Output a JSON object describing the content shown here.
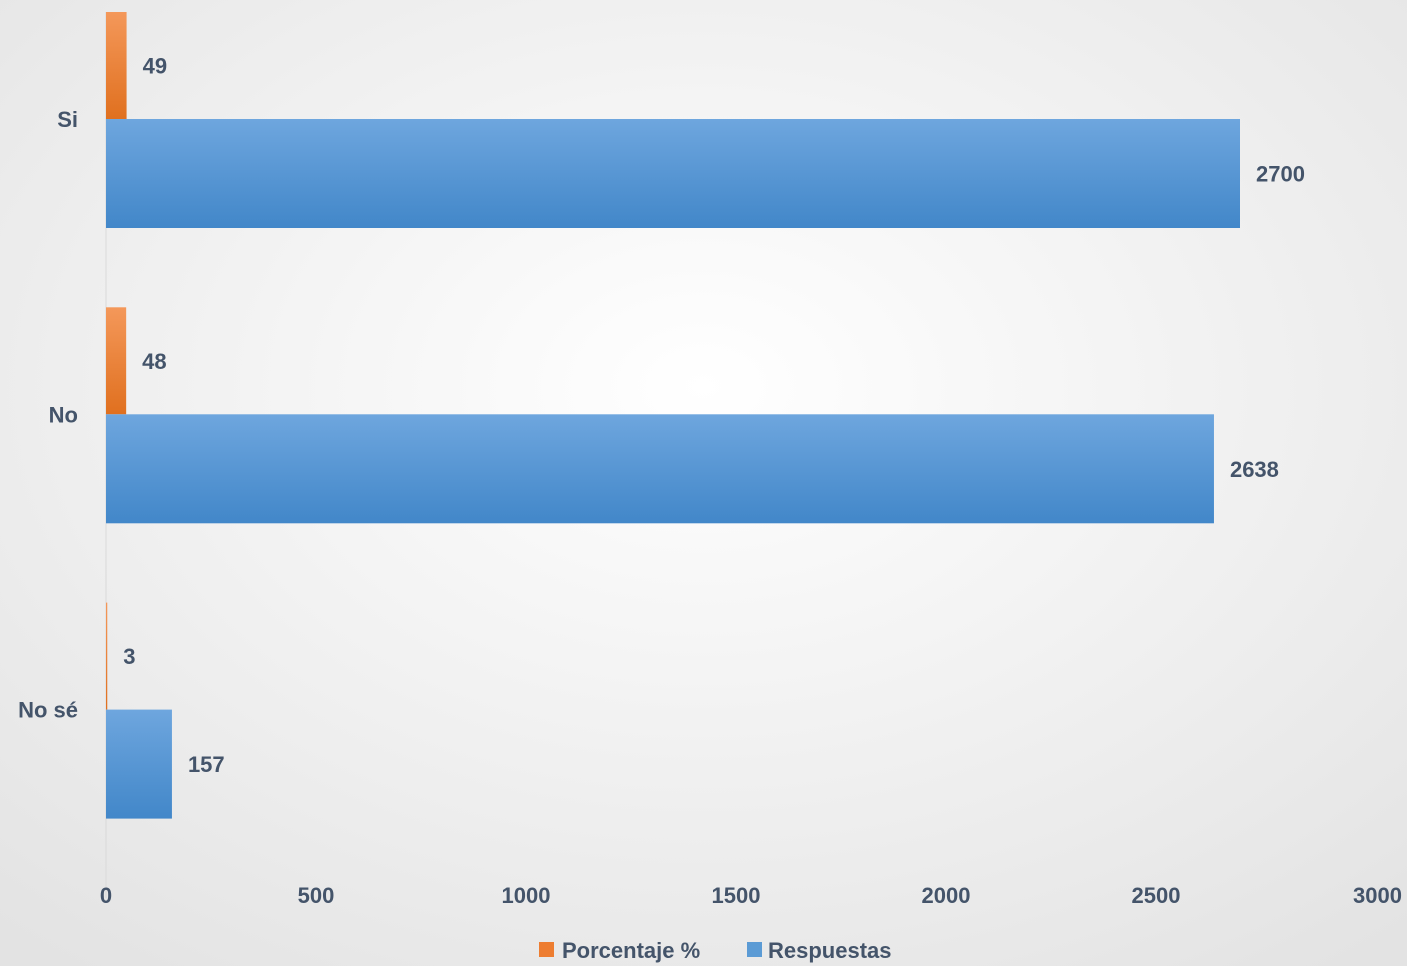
{
  "chart_data": {
    "type": "bar",
    "orientation": "horizontal",
    "categories": [
      "Si",
      "No",
      "No sé"
    ],
    "series": [
      {
        "name": "Porcentaje %",
        "values": [
          49,
          48,
          3
        ],
        "color": "#ed7d31"
      },
      {
        "name": "Respuestas",
        "values": [
          2700,
          2638,
          157
        ],
        "color": "#5b9bd5"
      }
    ],
    "xlim": [
      0,
      3000
    ],
    "xticks": [
      "0",
      "500",
      "1000",
      "1500",
      "2000",
      "2500",
      "3000"
    ],
    "grid": false,
    "legend_position": "bottom",
    "data_labels": true,
    "title": "",
    "xlabel": "",
    "ylabel": ""
  }
}
